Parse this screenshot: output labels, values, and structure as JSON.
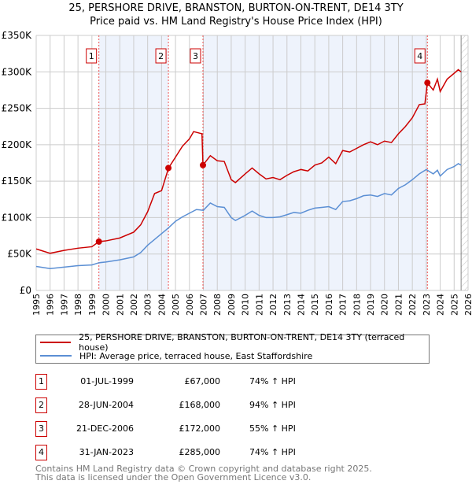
{
  "title_line1": "25, PERSHORE DRIVE, BRANSTON, BURTON-ON-TRENT, DE14 3TY",
  "title_line2": "Price paid vs. HM Land Registry's House Price Index (HPI)",
  "chart_data": {
    "type": "line",
    "title": "25, PERSHORE DRIVE, BRANSTON, BURTON-ON-TRENT, DE14 3TY — Price paid vs. HM Land Registry's House Price Index (HPI)",
    "xlim": [
      1995,
      2026
    ],
    "ylim": [
      0,
      350000
    ],
    "x_ticks": [
      "1995",
      "1996",
      "1997",
      "1998",
      "1999",
      "2000",
      "2001",
      "2002",
      "2003",
      "2004",
      "2005",
      "2006",
      "2007",
      "2008",
      "2009",
      "2010",
      "2011",
      "2012",
      "2013",
      "2014",
      "2015",
      "2016",
      "2017",
      "2018",
      "2019",
      "2020",
      "2021",
      "2022",
      "2023",
      "2024",
      "2025",
      "2026"
    ],
    "y_ticks": [
      {
        "v": 0,
        "label": "£0"
      },
      {
        "v": 50000,
        "label": "£50K"
      },
      {
        "v": 100000,
        "label": "£100K"
      },
      {
        "v": 150000,
        "label": "£150K"
      },
      {
        "v": 200000,
        "label": "£200K"
      },
      {
        "v": 250000,
        "label": "£250K"
      },
      {
        "v": 300000,
        "label": "£300K"
      },
      {
        "v": 350000,
        "label": "£350K"
      }
    ],
    "grid": true,
    "series": [
      {
        "name": "25, PERSHORE DRIVE, BRANSTON, BURTON-ON-TRENT, DE14 3TY (terraced house)",
        "color": "#cc0000",
        "x": [
          1995,
          1996,
          1997,
          1998,
          1999,
          1999.5,
          2000,
          2001,
          2002,
          2002.5,
          2003,
          2003.5,
          2004,
          2004.5,
          2005,
          2005.5,
          2006,
          2006.3,
          2006.9,
          2006.97,
          2007.5,
          2008,
          2008.5,
          2009,
          2009.3,
          2010,
          2010.5,
          2011,
          2011.5,
          2012,
          2012.5,
          2013,
          2013.5,
          2014,
          2014.5,
          2015,
          2015.5,
          2016,
          2016.5,
          2017,
          2017.5,
          2018,
          2018.5,
          2019,
          2019.5,
          2020,
          2020.5,
          2021,
          2021.5,
          2022,
          2022.5,
          2022.9,
          2023.08,
          2023.5,
          2023.8,
          2024,
          2024.5,
          2025,
          2025.3,
          2025.5
        ],
        "y": [
          57000,
          51000,
          55000,
          58000,
          60000,
          67000,
          68000,
          72000,
          80000,
          90000,
          108000,
          133000,
          137000,
          168000,
          183000,
          198000,
          208000,
          218000,
          215000,
          172000,
          185000,
          178000,
          177000,
          152000,
          148000,
          160000,
          168000,
          160000,
          153000,
          155000,
          152000,
          158000,
          163000,
          166000,
          164000,
          172000,
          175000,
          183000,
          174000,
          192000,
          190000,
          195000,
          200000,
          204000,
          200000,
          205000,
          203000,
          215000,
          225000,
          237000,
          255000,
          256000,
          285000,
          275000,
          290000,
          273000,
          290000,
          298000,
          303000,
          300000
        ]
      },
      {
        "name": "HPI: Average price, terraced house, East Staffordshire",
        "color": "#5b8fd4",
        "x": [
          1995,
          1996,
          1997,
          1998,
          1999,
          1999.5,
          2000,
          2001,
          2002,
          2002.5,
          2003,
          2003.5,
          2004,
          2004.5,
          2005,
          2005.5,
          2006,
          2006.5,
          2007,
          2007.5,
          2008,
          2008.5,
          2009,
          2009.3,
          2010,
          2010.5,
          2011,
          2011.5,
          2012,
          2012.5,
          2013,
          2013.5,
          2014,
          2014.5,
          2015,
          2015.5,
          2016,
          2016.5,
          2017,
          2017.5,
          2018,
          2018.5,
          2019,
          2019.5,
          2020,
          2020.5,
          2021,
          2021.5,
          2022,
          2022.5,
          2023,
          2023.5,
          2023.8,
          2024,
          2024.5,
          2025,
          2025.3,
          2025.5
        ],
        "y": [
          33000,
          30000,
          32000,
          34000,
          35000,
          38000,
          39000,
          42000,
          46000,
          52000,
          62000,
          70000,
          78000,
          86000,
          95000,
          101000,
          106000,
          111000,
          110000,
          120000,
          115000,
          114000,
          100000,
          96000,
          103000,
          109000,
          103000,
          100000,
          100000,
          101000,
          104000,
          107000,
          106000,
          110000,
          113000,
          114000,
          115000,
          111000,
          122000,
          123000,
          126000,
          130000,
          131000,
          129000,
          133000,
          131000,
          140000,
          145000,
          152000,
          160000,
          166000,
          160000,
          165000,
          157000,
          166000,
          170000,
          174000,
          172000
        ]
      }
    ],
    "sales": [
      {
        "n": "1",
        "x": 1999.5,
        "y": 67000
      },
      {
        "n": "2",
        "x": 2004.49,
        "y": 168000
      },
      {
        "n": "3",
        "x": 2006.97,
        "y": 172000
      },
      {
        "n": "4",
        "x": 2023.08,
        "y": 285000
      }
    ],
    "shaded": [
      [
        1999.5,
        2004.49
      ],
      [
        2006.97,
        2023.08
      ]
    ],
    "hatch_from": 2025.5
  },
  "legend": [
    {
      "label": "25, PERSHORE DRIVE, BRANSTON, BURTON-ON-TRENT, DE14 3TY (terraced house)",
      "color": "#cc0000"
    },
    {
      "label": "HPI: Average price, terraced house, East Staffordshire",
      "color": "#5b8fd4"
    }
  ],
  "table": [
    {
      "n": "1",
      "date": "01-JUL-1999",
      "price": "£67,000",
      "hpi": "74% ↑ HPI"
    },
    {
      "n": "2",
      "date": "28-JUN-2004",
      "price": "£168,000",
      "hpi": "94% ↑ HPI"
    },
    {
      "n": "3",
      "date": "21-DEC-2006",
      "price": "£172,000",
      "hpi": "55% ↑ HPI"
    },
    {
      "n": "4",
      "date": "31-JAN-2023",
      "price": "£285,000",
      "hpi": "74% ↑ HPI"
    }
  ],
  "footer": {
    "line1": "Contains HM Land Registry data © Crown copyright and database right 2025.",
    "line2": "This data is licensed under the Open Government Licence v3.0."
  }
}
